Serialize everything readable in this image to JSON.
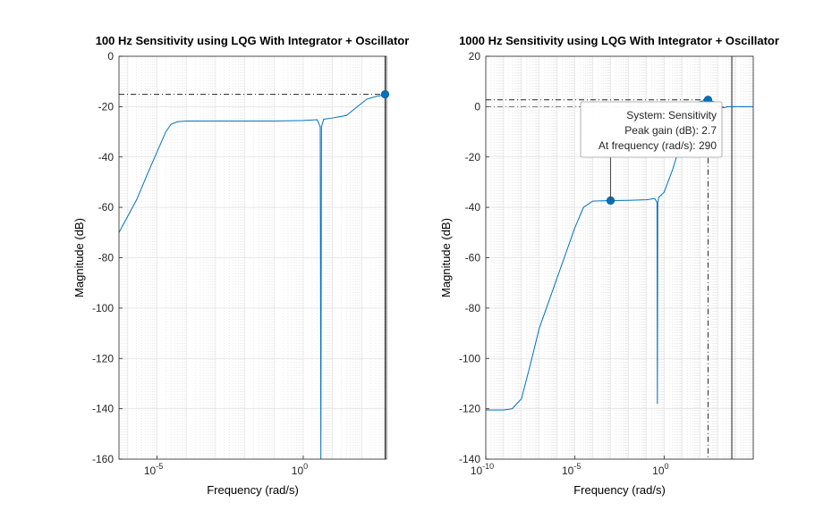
{
  "chart_data": [
    {
      "type": "line",
      "title": "100 Hz Sensitivity using LQG With Integrator + Oscillator",
      "xlabel": "Frequency  (rad/s)",
      "ylabel": "Magnitude (dB)",
      "x_scale": "log",
      "xlim": [
        5e-07,
        700
      ],
      "ylim": [
        -160,
        0
      ],
      "xticks": [
        {
          "value": 1e-05,
          "base": "10",
          "exp": "-5"
        },
        {
          "value": 1,
          "base": "10",
          "exp": "0"
        }
      ],
      "yticks": [
        0,
        -20,
        -40,
        -60,
        -80,
        -100,
        -120,
        -140,
        -160
      ],
      "grid": true,
      "peak_marker": {
        "x": 628,
        "y": -15.1
      },
      "peak_line_y": -15.1,
      "vertical_line_x": 628,
      "series": [
        {
          "color": "#0072BD",
          "x": [
            5e-07,
            2e-06,
            5e-06,
            1e-05,
            2e-05,
            3e-05,
            5e-05,
            0.0001,
            0.001,
            0.01,
            0.1,
            1,
            3,
            3.8,
            4,
            4.2,
            5,
            10,
            30,
            80,
            150,
            300,
            500,
            600,
            628
          ],
          "y": [
            -70,
            -57,
            -46,
            -38,
            -30,
            -27,
            -26,
            -25.7,
            -25.7,
            -25.7,
            -25.7,
            -25.5,
            -25.2,
            -28,
            -160,
            -28,
            -25,
            -24.5,
            -23.5,
            -19.5,
            -17,
            -16,
            -15.5,
            -15.3,
            -15.1
          ]
        }
      ]
    },
    {
      "type": "line",
      "title": "1000 Hz Sensitivity using LQG With Integrator + Oscillator",
      "xlabel": "Frequency  (rad/s)",
      "ylabel": "Magnitude (dB)",
      "x_scale": "log",
      "xlim": [
        1e-10,
        100000
      ],
      "ylim": [
        -140,
        20
      ],
      "xticks": [
        {
          "value": 1e-10,
          "base": "10",
          "exp": "-10"
        },
        {
          "value": 1e-05,
          "base": "10",
          "exp": "-5"
        },
        {
          "value": 1,
          "base": "10",
          "exp": "0"
        }
      ],
      "yticks": [
        20,
        0,
        -20,
        -40,
        -60,
        -80,
        -100,
        -120,
        -140
      ],
      "grid": true,
      "peak_marker": {
        "x": 290,
        "y": 2.7
      },
      "peak_line_y": 2.7,
      "zero_line_y": 0,
      "vertical_line_x": 290,
      "axis_line_x": 6280,
      "data_marker": {
        "x": 0.001,
        "y": -37.3
      },
      "tooltip": {
        "line1": "System: Sensitivity",
        "line2": "Peak gain (dB): 2.7",
        "line3": "At frequency (rad/s): 290"
      },
      "series": [
        {
          "color": "#0072BD",
          "x": [
            1e-10,
            1e-09,
            3e-09,
            1e-08,
            3e-08,
            1e-07,
            1e-06,
            1e-05,
            3e-05,
            0.0001,
            0.001,
            0.01,
            0.1,
            0.3,
            0.4,
            0.42,
            0.44,
            0.5,
            1,
            3,
            10,
            30,
            100,
            290,
            600,
            1000,
            2000,
            4000,
            6280,
            100000
          ],
          "y": [
            -120.5,
            -120.5,
            -120,
            -116,
            -103,
            -88,
            -68,
            -48,
            -40,
            -37.5,
            -37.3,
            -37.2,
            -37,
            -36.5,
            -38,
            -118,
            -38,
            -36,
            -34,
            -25,
            -13,
            -3,
            2,
            2.7,
            2,
            0.5,
            -0.5,
            0,
            0,
            0
          ]
        }
      ]
    }
  ]
}
